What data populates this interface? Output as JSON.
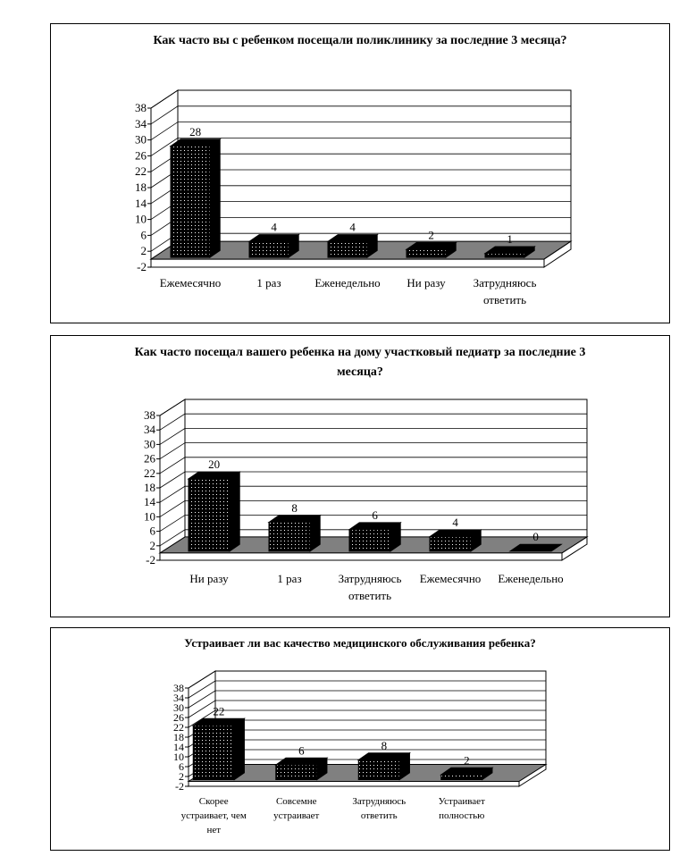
{
  "palette": {
    "bar": "#000000",
    "floor": "#808080",
    "wall": "#ffffff",
    "grid": "#000000"
  },
  "chart_data": [
    {
      "type": "bar",
      "title": "Как часто вы с ребенком посещали поликлинику за последние 3 месяца?",
      "categories": [
        "Ежемесячно",
        "1 раз",
        "Еженедельно",
        "Ни разу",
        "Затрудняюсь ответить"
      ],
      "values": [
        28,
        4,
        4,
        2,
        1
      ],
      "ylim": [
        -2,
        38
      ],
      "yticks": [
        "-2",
        "2",
        "6",
        "10",
        "14",
        "18",
        "22",
        "26",
        "30",
        "34",
        "38"
      ],
      "grid": true
    },
    {
      "type": "bar",
      "title": "Как часто посещал вашего ребенка на дому участковый педиатр за последние 3 месяца?",
      "categories": [
        "Ни разу",
        "1 раз",
        "Затрудняюсь ответить",
        "Ежемесячно",
        "Еженедельно"
      ],
      "values": [
        20,
        8,
        6,
        4,
        0
      ],
      "ylim": [
        -2,
        38
      ],
      "yticks": [
        "-2",
        "2",
        "6",
        "10",
        "14",
        "18",
        "22",
        "26",
        "30",
        "34",
        "38"
      ],
      "grid": true
    },
    {
      "type": "bar",
      "title": "Устраивает ли вас качество медицинского обслуживания ребенка?",
      "categories": [
        "Скорее устраивает, чем нет",
        "Совсемне устраивает",
        "Затрудняюсь ответить",
        "Устраивает полностью"
      ],
      "values": [
        22,
        6,
        8,
        2
      ],
      "ylim": [
        -2,
        38
      ],
      "yticks": [
        "-2",
        "2",
        "6",
        "10",
        "14",
        "18",
        "22",
        "26",
        "30",
        "34",
        "38"
      ],
      "grid": true
    }
  ]
}
